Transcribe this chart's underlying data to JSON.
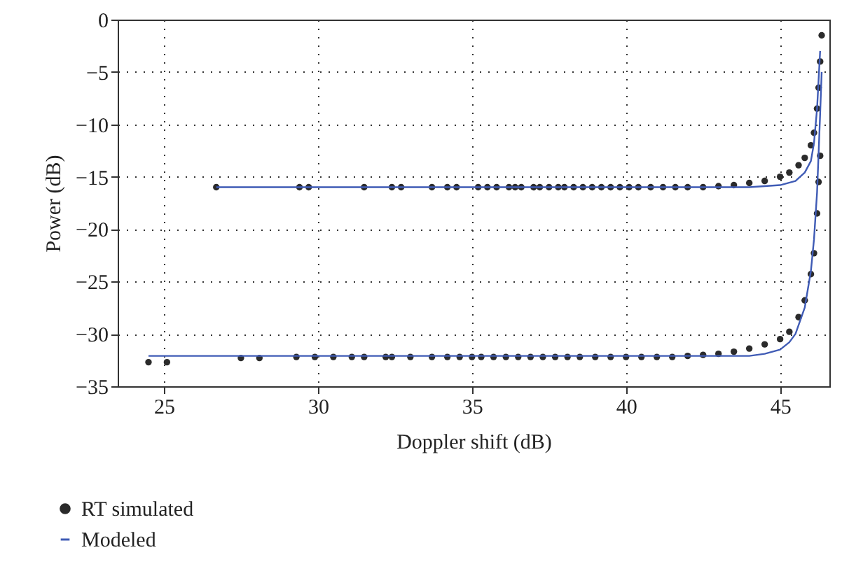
{
  "chart_data": {
    "type": "scatter",
    "xlabel": "Doppler shift (dB)",
    "ylabel": "Power (dB)",
    "xlim": [
      23.5,
      46.6
    ],
    "xticks": [
      25,
      30,
      35,
      40,
      45
    ],
    "ylim": [
      -35,
      0
    ],
    "yticks": [
      0,
      -5,
      -10,
      -15,
      -20,
      -25,
      -30,
      -35
    ],
    "grid": true,
    "legend": "bottom left",
    "series": [
      {
        "name": "RT simulated",
        "color": "#2b2b2b",
        "marker": "circle",
        "x": [
          26.7,
          29.4,
          29.7,
          31.5,
          32.4,
          32.7,
          33.7,
          34.2,
          34.5,
          35.2,
          35.5,
          35.8,
          36.2,
          36.4,
          36.6,
          37.0,
          37.2,
          37.5,
          37.8,
          38.0,
          38.3,
          38.6,
          38.9,
          39.2,
          39.5,
          39.8,
          40.1,
          40.4,
          40.8,
          41.2,
          41.6,
          42.0,
          42.5,
          43.0,
          43.5,
          44.0,
          44.5,
          45.0,
          45.3,
          45.6,
          45.8,
          46.0,
          46.1,
          46.2,
          46.25,
          46.3,
          46.35,
          24.5,
          25.1,
          27.5,
          28.1,
          29.3,
          29.9,
          30.5,
          31.1,
          31.5,
          32.2,
          32.4,
          33.0,
          33.7,
          34.2,
          34.6,
          35.0,
          35.3,
          35.7,
          36.1,
          36.5,
          36.9,
          37.3,
          37.7,
          38.1,
          38.5,
          39.0,
          39.5,
          40.0,
          40.5,
          41.0,
          41.5,
          42.0,
          42.5,
          43.0,
          43.5,
          44.0,
          44.5,
          45.0,
          45.3,
          45.6,
          45.8,
          46.0,
          46.1,
          46.2,
          46.25,
          46.3
        ],
        "values": [
          -16,
          -16,
          -16,
          -16,
          -16,
          -16,
          -16,
          -16,
          -16,
          -16,
          -16,
          -16,
          -16,
          -16,
          -16,
          -16,
          -16,
          -16,
          -16,
          -16,
          -16,
          -16,
          -16,
          -16,
          -16,
          -16,
          -16,
          -16,
          -16,
          -16,
          -16,
          -16,
          -16,
          -15.9,
          -15.8,
          -15.6,
          -15.4,
          -15.0,
          -14.6,
          -13.9,
          -13.2,
          -12.0,
          -10.8,
          -8.5,
          -6.5,
          -4,
          -1.5,
          -32.7,
          -32.7,
          -32.3,
          -32.3,
          -32.2,
          -32.2,
          -32.2,
          -32.2,
          -32.2,
          -32.2,
          -32.2,
          -32.2,
          -32.2,
          -32.2,
          -32.2,
          -32.2,
          -32.2,
          -32.2,
          -32.2,
          -32.2,
          -32.2,
          -32.2,
          -32.2,
          -32.2,
          -32.2,
          -32.2,
          -32.2,
          -32.2,
          -32.2,
          -32.2,
          -32.2,
          -32.1,
          -32.0,
          -31.9,
          -31.7,
          -31.4,
          -31.0,
          -30.5,
          -29.8,
          -28.4,
          -26.8,
          -24.3,
          -22.3,
          -18.5,
          -15.5,
          -13
        ]
      },
      {
        "name": "Modeled",
        "type": "line",
        "color": "#3f5bb5",
        "line_style": "solid",
        "x": [
          26.7,
          40,
          43,
          44,
          44.5,
          45,
          45.5,
          45.8,
          46.0,
          46.1,
          46.2,
          46.3,
          null,
          24.5,
          40,
          43,
          44,
          44.5,
          45,
          45.3,
          45.5,
          45.8,
          46.0,
          46.1,
          46.2,
          46.3,
          46.35
        ],
        "values": [
          -16,
          -16,
          -16,
          -16,
          -15.9,
          -15.8,
          -15.4,
          -14.6,
          -13.5,
          -11.8,
          -8.5,
          -3,
          null,
          -32.1,
          -32.1,
          -32.1,
          -32.1,
          -31.9,
          -31.5,
          -30.8,
          -30.0,
          -27.5,
          -24.0,
          -21,
          -16.5,
          -9,
          -5
        ]
      }
    ]
  }
}
